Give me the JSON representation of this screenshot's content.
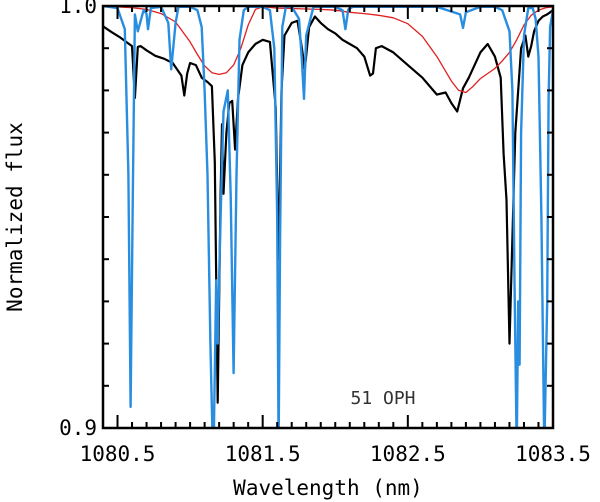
{
  "chart_data": {
    "type": "line",
    "xlabel": "Wavelength (nm)",
    "ylabel": "Normalized flux",
    "xlim": [
      1080.4,
      1083.5
    ],
    "ylim": [
      0.9,
      1.0
    ],
    "x_ticks": [
      1080.5,
      1081.5,
      1082.5,
      1083.5
    ],
    "x_tick_labels": [
      "1080.5",
      "1081.5",
      "1082.5",
      "1083.5"
    ],
    "y_ticks": [
      0.9,
      1.0
    ],
    "y_tick_labels": [
      "0.9",
      "1.0"
    ],
    "annotation": "51 OPH",
    "grid": false,
    "series": [
      {
        "color": "#000000",
        "x": [
          1080.4,
          1080.46,
          1080.52,
          1080.56,
          1080.6,
          1080.62,
          1080.64,
          1080.66,
          1080.7,
          1080.76,
          1080.82,
          1080.88,
          1080.94,
          1080.96,
          1080.98,
          1081.0,
          1081.04,
          1081.08,
          1081.12,
          1081.15,
          1081.17,
          1081.19,
          1081.21,
          1081.22,
          1081.23,
          1081.25,
          1081.27,
          1081.29,
          1081.31,
          1081.33,
          1081.36,
          1081.4,
          1081.45,
          1081.5,
          1081.55,
          1081.59,
          1081.61,
          1081.63,
          1081.65,
          1081.7,
          1081.74,
          1081.77,
          1081.79,
          1081.82,
          1081.86,
          1081.9,
          1081.95,
          1082.0,
          1082.05,
          1082.1,
          1082.15,
          1082.2,
          1082.24,
          1082.26,
          1082.28,
          1082.32,
          1082.4,
          1082.5,
          1082.6,
          1082.7,
          1082.76,
          1082.8,
          1082.84,
          1082.88,
          1082.92,
          1082.96,
          1083.0,
          1083.05,
          1083.1,
          1083.14,
          1083.16,
          1083.18,
          1083.2,
          1083.22,
          1083.24,
          1083.28,
          1083.31,
          1083.33,
          1083.35,
          1083.37,
          1083.4,
          1083.43,
          1083.46,
          1083.48,
          1083.5
        ],
        "y": [
          0.9952,
          0.9938,
          0.9925,
          0.9915,
          0.9905,
          0.9782,
          0.9903,
          0.9905,
          0.9895,
          0.9882,
          0.9875,
          0.9865,
          0.9835,
          0.9788,
          0.984,
          0.9865,
          0.986,
          0.983,
          0.982,
          0.981,
          0.963,
          0.906,
          0.9555,
          0.972,
          0.9555,
          0.97,
          0.977,
          0.9775,
          0.966,
          0.978,
          0.986,
          0.989,
          0.991,
          0.992,
          0.9915,
          0.976,
          0.94,
          0.98,
          0.993,
          0.996,
          0.9965,
          0.99,
          0.985,
          0.995,
          0.9975,
          0.996,
          0.9945,
          0.9935,
          0.992,
          0.991,
          0.99,
          0.988,
          0.9835,
          0.984,
          0.99,
          0.9905,
          0.989,
          0.986,
          0.983,
          0.979,
          0.9795,
          0.977,
          0.975,
          0.9805,
          0.983,
          0.986,
          0.989,
          0.991,
          0.988,
          0.983,
          0.965,
          0.954,
          0.92,
          0.945,
          0.97,
          0.99,
          0.993,
          0.988,
          0.9905,
          0.994,
          0.9965,
          0.9975,
          0.998,
          0.9985,
          0.999
        ]
      },
      {
        "color": "#e02020",
        "x": [
          1080.4,
          1080.5,
          1080.6,
          1080.7,
          1080.8,
          1080.9,
          1081.0,
          1081.05,
          1081.1,
          1081.15,
          1081.2,
          1081.25,
          1081.3,
          1081.35,
          1081.4,
          1081.45,
          1081.5,
          1081.55,
          1081.6,
          1081.7,
          1081.8,
          1081.9,
          1082.0,
          1082.1,
          1082.2,
          1082.3,
          1082.4,
          1082.5,
          1082.6,
          1082.7,
          1082.8,
          1082.85,
          1082.9,
          1082.95,
          1083.0,
          1083.05,
          1083.1,
          1083.15,
          1083.2,
          1083.25,
          1083.3,
          1083.35,
          1083.4,
          1083.45,
          1083.5
        ],
        "y": [
          1.0,
          0.9998,
          0.9996,
          0.9992,
          0.9982,
          0.9962,
          0.9915,
          0.9885,
          0.9858,
          0.9842,
          0.9838,
          0.9842,
          0.986,
          0.99,
          0.9955,
          0.9992,
          0.9998,
          0.9997,
          0.9995,
          0.9994,
          0.9993,
          0.9992,
          0.999,
          0.9985,
          0.9982,
          0.9978,
          0.9972,
          0.9958,
          0.9928,
          0.988,
          0.9822,
          0.98,
          0.9795,
          0.981,
          0.9828,
          0.984,
          0.9852,
          0.987,
          0.989,
          0.992,
          0.9955,
          0.9978,
          0.999,
          0.9996,
          0.9998
        ]
      },
      {
        "color": "#2a8ee0",
        "x": [
          1080.4,
          1080.5,
          1080.55,
          1080.575,
          1080.59,
          1080.605,
          1080.62,
          1080.64,
          1080.68,
          1080.7,
          1080.71,
          1080.73,
          1080.8,
          1080.85,
          1080.87,
          1080.9,
          1080.92,
          1080.96,
          1081.0,
          1081.05,
          1081.08,
          1081.1,
          1081.12,
          1081.14,
          1081.16,
          1081.18,
          1081.19,
          1081.2,
          1081.21,
          1081.23,
          1081.26,
          1081.28,
          1081.3,
          1081.32,
          1081.34,
          1081.37,
          1081.4,
          1081.5,
          1081.55,
          1081.58,
          1081.6,
          1081.61,
          1081.62,
          1081.635,
          1081.66,
          1081.7,
          1081.75,
          1081.77,
          1081.785,
          1081.8,
          1081.85,
          1081.95,
          1082.0,
          1082.05,
          1082.07,
          1082.09,
          1082.12,
          1082.3,
          1082.5,
          1082.7,
          1082.86,
          1082.88,
          1082.9,
          1083.0,
          1083.1,
          1083.15,
          1083.2,
          1083.22,
          1083.235,
          1083.25,
          1083.26,
          1083.27,
          1083.28,
          1083.3,
          1083.33,
          1083.36,
          1083.38,
          1083.4,
          1083.42,
          1083.44,
          1083.46,
          1083.47,
          1083.48,
          1083.5
        ],
        "y": [
          1.0,
          0.9995,
          0.9945,
          0.96,
          0.905,
          0.955,
          0.998,
          0.994,
          0.999,
          0.9982,
          0.9945,
          0.9995,
          0.9998,
          0.996,
          0.985,
          0.996,
          0.9998,
          0.9998,
          0.9998,
          0.999,
          0.995,
          0.98,
          0.96,
          0.92,
          0.89,
          0.935,
          0.92,
          0.935,
          0.95,
          0.975,
          0.98,
          0.955,
          0.913,
          0.96,
          0.992,
          0.999,
          0.9998,
          0.9998,
          0.999,
          0.99,
          0.95,
          0.895,
          0.945,
          0.995,
          0.9998,
          0.9998,
          0.997,
          0.987,
          0.978,
          0.993,
          0.9998,
          0.9998,
          0.9998,
          0.999,
          0.9945,
          0.9992,
          0.9998,
          0.9998,
          0.9998,
          0.9998,
          0.998,
          0.9948,
          0.9985,
          0.9998,
          0.9998,
          0.999,
          0.994,
          0.98,
          0.935,
          0.895,
          0.93,
          0.915,
          0.97,
          0.993,
          0.9995,
          0.9995,
          0.997,
          0.988,
          0.95,
          0.895,
          0.93,
          0.978,
          0.995,
          0.999
        ]
      }
    ]
  }
}
